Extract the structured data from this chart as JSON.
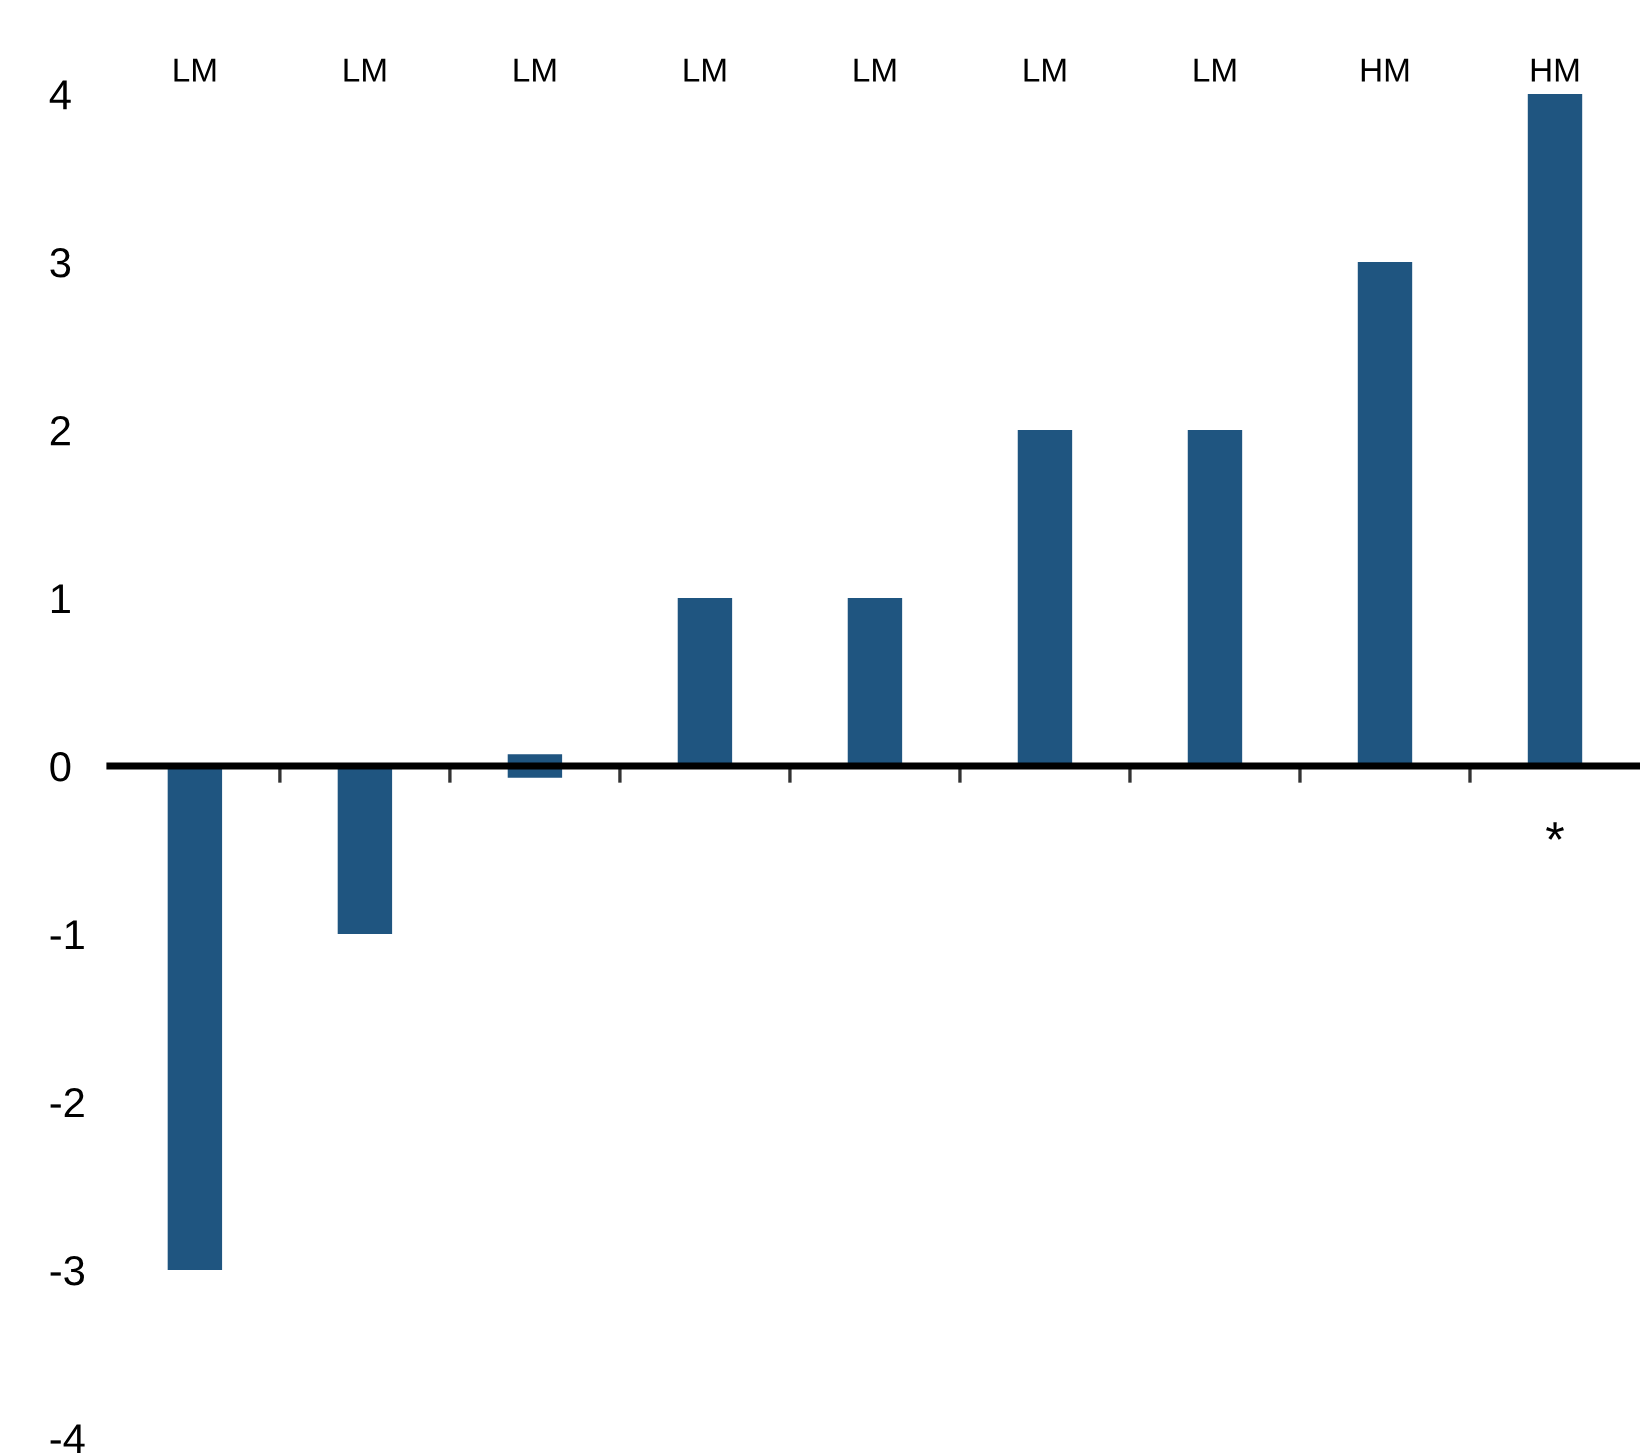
{
  "chart_data": {
    "type": "bar",
    "categories": [
      "LM",
      "LM",
      "LM",
      "LM",
      "LM",
      "LM",
      "LM",
      "HM",
      "HM"
    ],
    "values": [
      -3,
      -1,
      0.14,
      1,
      1,
      2,
      2,
      3,
      4
    ],
    "base": [
      0,
      0,
      -0.07,
      0,
      0,
      0,
      0,
      0,
      0
    ],
    "color": "#1f5580",
    "ylim": [
      -4,
      4
    ],
    "yticks": [
      -4,
      -3,
      -2,
      -1,
      0,
      1,
      2,
      3,
      4
    ],
    "annotations": [
      "*"
    ]
  }
}
